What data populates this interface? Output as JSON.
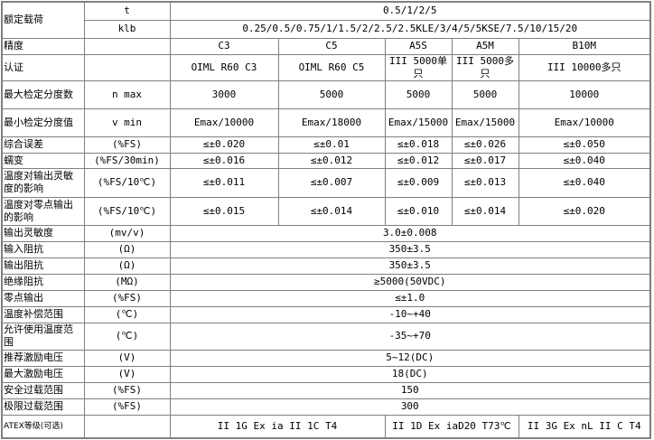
{
  "rows": [
    {
      "name": "额定载荷",
      "unit": "t",
      "cells": [
        "0.5/1/2/5"
      ]
    },
    {
      "name": "",
      "unit": "klb",
      "cells": [
        "0.25/0.5/0.75/1/1.5/2/2.5/2.5KLE/3/4/5/5KSE/7.5/10/15/20"
      ]
    },
    {
      "name": "精度",
      "unit": "",
      "cells": [
        "C3",
        "C5",
        "A5S",
        "A5M",
        "B10M"
      ]
    },
    {
      "name": "认证",
      "unit": "",
      "cells": [
        "OIML R60 C3",
        "OIML R60 C5",
        "III 5000单只",
        "III 5000多只",
        "III 10000多只"
      ]
    },
    {
      "name": "最大检定分度数",
      "unit": "n max",
      "cells": [
        "3000",
        "5000",
        "5000",
        "5000",
        "10000"
      ]
    },
    {
      "name": "最小检定分度值",
      "unit": "v min",
      "cells": [
        "Emax/10000",
        "Emax/18000",
        "Emax/15000",
        "Emax/15000",
        "Emax/10000"
      ]
    },
    {
      "name": "综合误差",
      "unit": "(%FS)",
      "cells": [
        "≤±0.020",
        "≤±0.01",
        "≤±0.018",
        "≤±0.026",
        "≤±0.050"
      ]
    },
    {
      "name": "蠕变",
      "unit": "(%FS/30min)",
      "cells": [
        "≤±0.016",
        "≤±0.012",
        "≤±0.012",
        "≤±0.017",
        "≤±0.040"
      ]
    },
    {
      "name": "温度对输出灵敏度的影响",
      "unit": "(%FS/10℃)",
      "cells": [
        "≤±0.011",
        "≤±0.007",
        "≤±0.009",
        "≤±0.013",
        "≤±0.040"
      ]
    },
    {
      "name": "温度对零点输出的影响",
      "unit": "(%FS/10℃)",
      "cells": [
        "≤±0.015",
        "≤±0.014",
        "≤±0.010",
        "≤±0.014",
        "≤±0.020"
      ]
    },
    {
      "name": "输出灵敏度",
      "unit": "(mv/v)",
      "cells": [
        "3.0±0.008"
      ]
    },
    {
      "name": "输入阻抗",
      "unit": "(Ω)",
      "cells": [
        "350±3.5"
      ]
    },
    {
      "name": "输出阻抗",
      "unit": "(Ω)",
      "cells": [
        "350±3.5"
      ]
    },
    {
      "name": "绝缘阻抗",
      "unit": "(MΩ)",
      "cells": [
        "≥5000(50VDC)"
      ]
    },
    {
      "name": "零点输出",
      "unit": "(%FS)",
      "cells": [
        "≤±1.0"
      ]
    },
    {
      "name": "温度补偿范围",
      "unit": "(℃)",
      "cells": [
        "-10~+40"
      ]
    },
    {
      "name": "允许使用温度范围",
      "unit": "(℃)",
      "cells": [
        "-35~+70"
      ]
    },
    {
      "name": "推荐激励电压",
      "unit": "(V)",
      "cells": [
        "5~12(DC)"
      ]
    },
    {
      "name": "最大激励电压",
      "unit": "(V)",
      "cells": [
        "18(DC)"
      ]
    },
    {
      "name": "安全过载范围",
      "unit": "(%FS)",
      "cells": [
        "150"
      ]
    },
    {
      "name": "极限过载范围",
      "unit": "(%FS)",
      "cells": [
        "300"
      ]
    },
    {
      "name": "ATEX等级(可选)",
      "unit": "",
      "cells": [
        "II 1G Ex ia II 1C T4",
        "II 1D Ex iaD20 T73℃",
        "II 3G Ex nL II C T4"
      ]
    }
  ]
}
